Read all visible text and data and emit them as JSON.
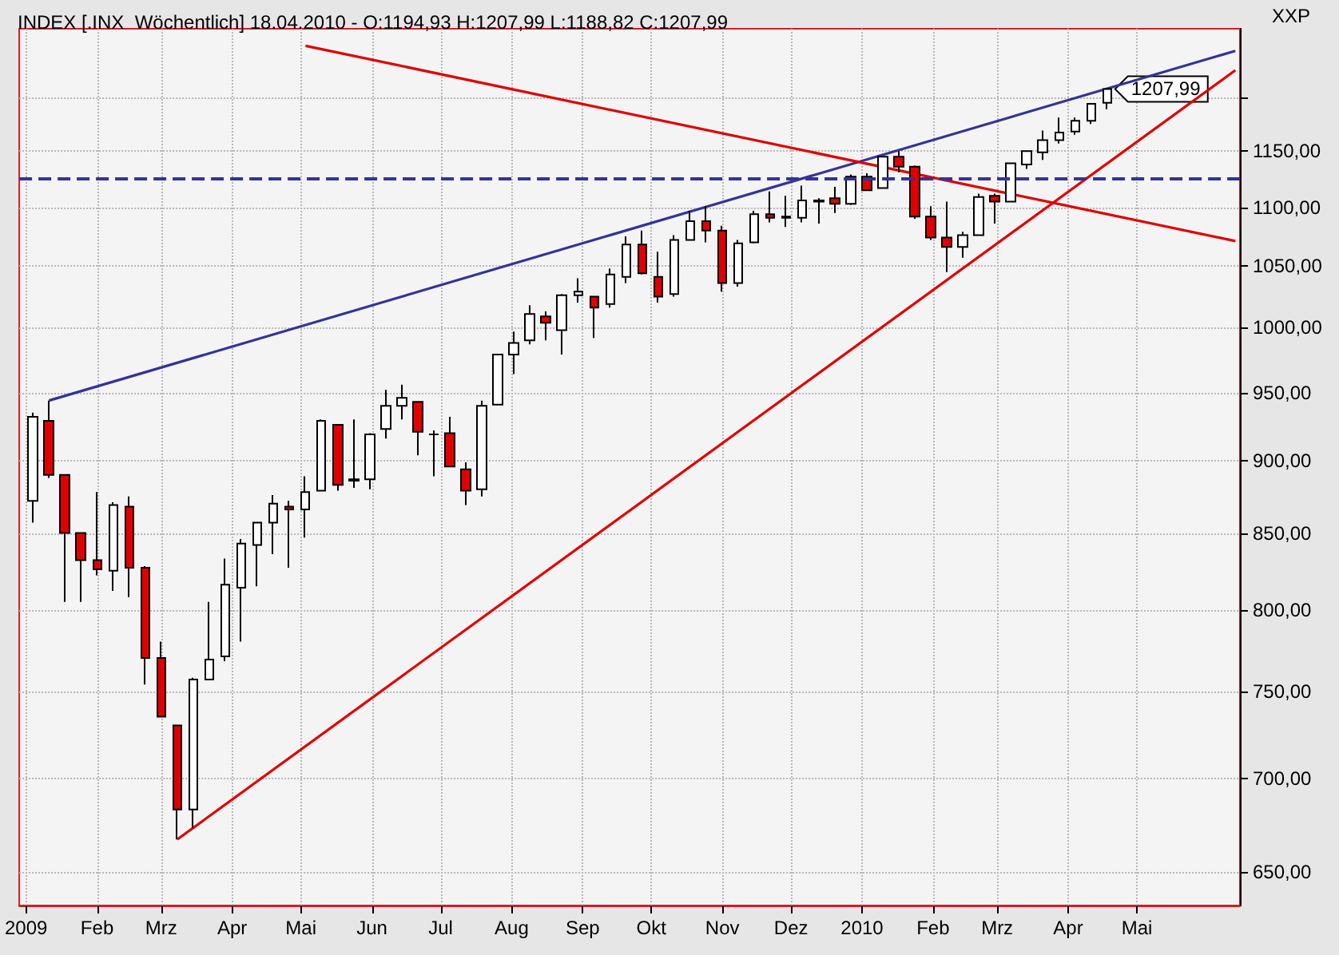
{
  "chart_data": {
    "type": "candlestick",
    "title": "INDEX [.INX  Wöchentlich] 18.04.2010 - O:1194,93 H:1207,99 L:1188,82 C:1207,99",
    "x": [
      "2009-01-04",
      "2009-01-11",
      "2009-01-18",
      "2009-01-25",
      "2009-02-01",
      "2009-02-08",
      "2009-02-15",
      "2009-02-22",
      "2009-03-01",
      "2009-03-08",
      "2009-03-15",
      "2009-03-22",
      "2009-03-29",
      "2009-04-05",
      "2009-04-12",
      "2009-04-19",
      "2009-04-26",
      "2009-05-03",
      "2009-05-10",
      "2009-05-17",
      "2009-05-24",
      "2009-05-31",
      "2009-06-07",
      "2009-06-14",
      "2009-06-21",
      "2009-06-28",
      "2009-07-05",
      "2009-07-12",
      "2009-07-19",
      "2009-07-26",
      "2009-08-02",
      "2009-08-09",
      "2009-08-16",
      "2009-08-23",
      "2009-08-30",
      "2009-09-06",
      "2009-09-13",
      "2009-09-20",
      "2009-09-27",
      "2009-10-04",
      "2009-10-11",
      "2009-10-18",
      "2009-10-25",
      "2009-11-01",
      "2009-11-08",
      "2009-11-15",
      "2009-11-22",
      "2009-11-29",
      "2009-12-06",
      "2009-12-13",
      "2009-12-20",
      "2009-12-27",
      "2010-01-03",
      "2010-01-10",
      "2010-01-17",
      "2010-01-24",
      "2010-01-31",
      "2010-02-07",
      "2010-02-14",
      "2010-02-21",
      "2010-02-28",
      "2010-03-07",
      "2010-03-14",
      "2010-03-21",
      "2010-03-28",
      "2010-04-04",
      "2010-04-11",
      "2010-04-18"
    ],
    "series": [
      {
        "colors": [
          "#ffffff",
          "#e00000",
          "#e00000",
          "#e00000",
          "#e00000",
          "#ffffff",
          "#e00000",
          "#e00000",
          "#e00000",
          "#e00000",
          "#ffffff",
          "#ffffff",
          "#ffffff",
          "#ffffff",
          "#ffffff",
          "#ffffff",
          "#e00000",
          "#ffffff",
          "#ffffff",
          "#e00000",
          "#ffffff",
          "#ffffff",
          "#ffffff",
          "#ffffff",
          "#e00000",
          "#000000",
          "#e00000",
          "#e00000",
          "#ffffff",
          "#ffffff",
          "#ffffff",
          "#ffffff",
          "#e00000",
          "#ffffff",
          "#ffffff",
          "#e00000",
          "#ffffff",
          "#ffffff",
          "#e00000",
          "#e00000",
          "#ffffff",
          "#ffffff",
          "#e00000",
          "#e00000",
          "#ffffff",
          "#ffffff",
          "#e00000",
          "#e00000",
          "#ffffff",
          "#ffffff",
          "#e00000",
          "#ffffff",
          "#e00000",
          "#ffffff",
          "#e00000",
          "#e00000",
          "#e00000",
          "#e00000",
          "#ffffff",
          "#ffffff",
          "#e00000",
          "#ffffff",
          "#ffffff",
          "#ffffff",
          "#ffffff",
          "#ffffff",
          "#ffffff",
          "#ffffff"
        ],
        "ohlc": [
          [
            872,
            935,
            857,
            932
          ],
          [
            929,
            944,
            888,
            890
          ],
          [
            890,
            890,
            805,
            850
          ],
          [
            850,
            850,
            805,
            832
          ],
          [
            832,
            878,
            822,
            826
          ],
          [
            825,
            871,
            812,
            869
          ],
          [
            868,
            875,
            808,
            827
          ],
          [
            827,
            828,
            754,
            770
          ],
          [
            770,
            780,
            735,
            735
          ],
          [
            730,
            730,
            667,
            683
          ],
          [
            683,
            758,
            673,
            757
          ],
          [
            757,
            805,
            757,
            769
          ],
          [
            771,
            833,
            768,
            816
          ],
          [
            814,
            846,
            780,
            843
          ],
          [
            842,
            857,
            815,
            857
          ],
          [
            857,
            876,
            836,
            870
          ],
          [
            868,
            872,
            827,
            866
          ],
          [
            866,
            889,
            847,
            878
          ],
          [
            879,
            930,
            879,
            929
          ],
          [
            926,
            926,
            879,
            883
          ],
          [
            886,
            930,
            881,
            887
          ],
          [
            887,
            920,
            880,
            919
          ],
          [
            923,
            952,
            916,
            940
          ],
          [
            940,
            956,
            930,
            946
          ],
          [
            943,
            943,
            904,
            921
          ],
          [
            919,
            922,
            889,
            919
          ],
          [
            920,
            932,
            896,
            896
          ],
          [
            894,
            899,
            869,
            879
          ],
          [
            880,
            944,
            875,
            940
          ],
          [
            941,
            979,
            941,
            979
          ],
          [
            979,
            997,
            964,
            988
          ],
          [
            990,
            1018,
            987,
            1011
          ],
          [
            1009,
            1013,
            990,
            1004
          ],
          [
            998,
            1027,
            979,
            1026
          ],
          [
            1026,
            1040,
            1020,
            1029
          ],
          [
            1025,
            1025,
            992,
            1016
          ],
          [
            1019,
            1048,
            1016,
            1043
          ],
          [
            1041,
            1075,
            1036,
            1068
          ],
          [
            1068,
            1080,
            1043,
            1044
          ],
          [
            1041,
            1062,
            1020,
            1025
          ],
          [
            1027,
            1076,
            1025,
            1072
          ],
          [
            1072,
            1097,
            1072,
            1088
          ],
          [
            1088,
            1101,
            1070,
            1080
          ],
          [
            1080,
            1084,
            1029,
            1036
          ],
          [
            1036,
            1072,
            1033,
            1069
          ],
          [
            1070,
            1097,
            1069,
            1094
          ],
          [
            1094,
            1114,
            1087,
            1091
          ],
          [
            1092,
            1110,
            1083,
            1091
          ],
          [
            1091,
            1119,
            1087,
            1106
          ],
          [
            1105,
            1108,
            1086,
            1106
          ],
          [
            1108,
            1118,
            1095,
            1103
          ],
          [
            1103,
            1129,
            1102,
            1127
          ],
          [
            1127,
            1130,
            1115,
            1115
          ],
          [
            1117,
            1145,
            1117,
            1145
          ],
          [
            1145,
            1150,
            1131,
            1136
          ],
          [
            1136,
            1137,
            1090,
            1092
          ],
          [
            1092,
            1101,
            1072,
            1074
          ],
          [
            1074,
            1105,
            1045,
            1066
          ],
          [
            1066,
            1079,
            1057,
            1076
          ],
          [
            1076,
            1112,
            1076,
            1109
          ],
          [
            1110,
            1112,
            1086,
            1105
          ],
          [
            1105,
            1139,
            1105,
            1139
          ],
          [
            1138,
            1150,
            1134,
            1150
          ],
          [
            1149,
            1169,
            1142,
            1160
          ],
          [
            1160,
            1181,
            1157,
            1167
          ],
          [
            1168,
            1181,
            1165,
            1178
          ],
          [
            1178,
            1194,
            1175,
            1194
          ],
          [
            1194.93,
            1207.99,
            1188.82,
            1207.99
          ]
        ]
      },
      {
        "type": "line",
        "color": "#333399",
        "x": [
          "2009-01-11",
          "2010-06-13"
        ],
        "values": [
          944,
          1245
        ]
      },
      {
        "type": "line",
        "color": "#e00000",
        "x": [
          "2009-05-03",
          "2010-06-13"
        ],
        "values": [
          1250,
          1071
        ]
      },
      {
        "type": "line",
        "color": "#e00000",
        "x": [
          "2009-03-08",
          "2010-06-13"
        ],
        "values": [
          667,
          1226
        ]
      }
    ],
    "xlim": [
      "2008-12-29",
      "2010-06-15"
    ],
    "xticks": [
      {
        "value": "2009-01-01",
        "label": "2009"
      },
      {
        "value": "2009-02-01",
        "label": "Feb"
      },
      {
        "value": "2009-03-01",
        "label": "Mrz"
      },
      {
        "value": "2009-04-01",
        "label": "Apr"
      },
      {
        "value": "2009-05-01",
        "label": "Mai"
      },
      {
        "value": "2009-06-01",
        "label": "Jun"
      },
      {
        "value": "2009-07-01",
        "label": "Jul"
      },
      {
        "value": "2009-08-01",
        "label": "Aug"
      },
      {
        "value": "2009-09-01",
        "label": "Sep"
      },
      {
        "value": "2009-10-01",
        "label": "Okt"
      },
      {
        "value": "2009-11-01",
        "label": "Nov"
      },
      {
        "value": "2009-12-01",
        "label": "Dez"
      },
      {
        "value": "2010-01-01",
        "label": "2010"
      },
      {
        "value": "2010-02-01",
        "label": "Feb"
      },
      {
        "value": "2010-03-01",
        "label": "Mrz"
      },
      {
        "value": "2010-04-01",
        "label": "Apr"
      },
      {
        "value": "2010-05-01",
        "label": "Mai"
      }
    ],
    "log": true,
    "ylim": [
      633,
      1267
    ],
    "yticks": [
      {
        "value": 650,
        "label": "650,00"
      },
      {
        "value": 700,
        "label": "700,00"
      },
      {
        "value": 750,
        "label": "750,00"
      },
      {
        "value": 800,
        "label": "800,00"
      },
      {
        "value": 850,
        "label": "850,00"
      },
      {
        "value": 900,
        "label": "900,00"
      },
      {
        "value": 950,
        "label": "950,00"
      },
      {
        "value": 1000,
        "label": "1000,00"
      },
      {
        "value": 1050,
        "label": "1050,00"
      },
      {
        "value": 1100,
        "label": "1100,00"
      },
      {
        "value": 1150,
        "label": "1150,00"
      },
      {
        "value": 1200,
        "label": null
      }
    ],
    "ref_lines": [
      {
        "axis": "y",
        "value": 1125,
        "color": "#333399",
        "line_style": "dashed"
      }
    ],
    "annotations": [
      "XXP",
      {
        "text": "1207,99",
        "x": "2010-04-18",
        "y": 1207.99
      }
    ],
    "grid": true,
    "marker": "none"
  }
}
